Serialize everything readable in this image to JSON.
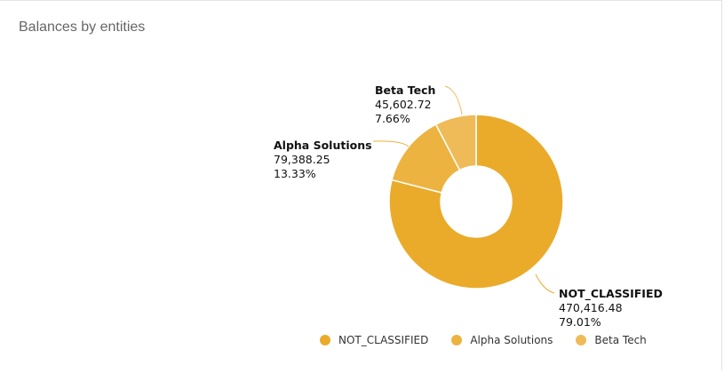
{
  "title": "Balances by entities",
  "chart_data": {
    "type": "pie",
    "variant": "donut",
    "title": "Balances by entities",
    "categories": [
      "NOT_CLASSIFIED",
      "Alpha Solutions",
      "Beta Tech"
    ],
    "values": [
      470416.48,
      79388.25,
      45602.72
    ],
    "value_labels": [
      "470,416.48",
      "79,388.25",
      "45,602.72"
    ],
    "percent_labels": [
      "79.01%",
      "13.33%",
      "7.66%"
    ],
    "colors": [
      "#EAAB2B",
      "#ECB340",
      "#EEBB58"
    ],
    "legend_position": "bottom"
  }
}
